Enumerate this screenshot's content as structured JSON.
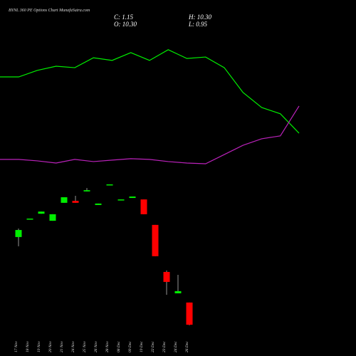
{
  "title": "BYNL 360 PE Options Chart MunafaSutra.com",
  "header": {
    "close": "C: 1.15",
    "high": "H: 10.30",
    "open": "O: 10.30",
    "low": "L: 0.95"
  },
  "chart_data": [
    {
      "type": "candlestick",
      "categories": [
        "17 Nov",
        "18 Nov",
        "19 Nov",
        "20 Nov",
        "21 Nov",
        "24 Nov",
        "25 Nov",
        "26 Nov",
        "28 Nov",
        "08 Dec",
        "09 Dec",
        "19 Dec",
        "22 Dec",
        "23 Dec",
        "24 Dec",
        "26 Dec"
      ],
      "open": [
        37.3,
        44.6,
        46.9,
        44.0,
        51.4,
        52.2,
        56.1,
        50.5,
        58.7,
        52.5,
        53.4,
        52.8,
        42.3,
        22.9,
        14.1,
        10.3
      ],
      "close": [
        40.2,
        44.9,
        47.8,
        46.7,
        53.7,
        51.4,
        56.6,
        51.1,
        59.0,
        52.8,
        54.0,
        46.7,
        29.4,
        18.8,
        15.0,
        1.15
      ],
      "high": [
        40.8,
        44.9,
        47.8,
        46.7,
        53.7,
        54.3,
        57.5,
        51.1,
        59.0,
        52.8,
        54.0,
        52.8,
        42.3,
        23.5,
        21.7,
        10.3
      ],
      "low": [
        33.5,
        44.6,
        46.9,
        44.0,
        51.4,
        51.4,
        56.1,
        50.5,
        58.7,
        52.5,
        53.4,
        46.7,
        29.4,
        13.5,
        14.1,
        0.95
      ],
      "up_color": "#00ee00",
      "down_color": "#ff0000",
      "wick_color": "#bbbbbb",
      "ylim": [
        0,
        135
      ]
    },
    {
      "type": "line",
      "series": [
        {
          "color": "#00ee00",
          "values": [
            103.3,
            103.3,
            106.0,
            107.7,
            107.1,
            111.2,
            110.1,
            113.3,
            110.1,
            114.5,
            110.9,
            111.5,
            107.1,
            96.9,
            90.7,
            88.1,
            80.1
          ]
        },
        {
          "color": "#bb22bb",
          "values": [
            69.3,
            69.3,
            68.7,
            67.8,
            69.3,
            68.4,
            69.0,
            69.6,
            69.3,
            68.4,
            67.8,
            67.5,
            71.3,
            75.1,
            77.8,
            79.0,
            91.3
          ]
        }
      ],
      "ylim": [
        0,
        135
      ]
    }
  ]
}
